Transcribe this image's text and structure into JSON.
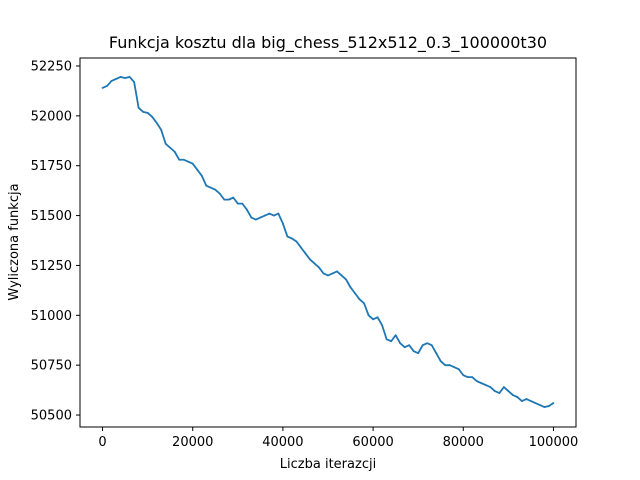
{
  "chart_data": {
    "type": "line",
    "title": "Funkcja kosztu dla big_chess_512x512_0.3_100000t30",
    "xlabel": "Liczba iterazcji",
    "ylabel": "Wyliczona funkcja",
    "xlim": [
      -5000,
      105000
    ],
    "ylim": [
      50440,
      52290
    ],
    "xticks": [
      0,
      20000,
      40000,
      60000,
      80000,
      100000
    ],
    "yticks": [
      50500,
      50750,
      51000,
      51250,
      51500,
      51750,
      52000,
      52250
    ],
    "grid": false,
    "series": [
      {
        "color": "#1f77b4",
        "x": [
          0,
          1000,
          2000,
          3000,
          4000,
          5000,
          6000,
          7000,
          8000,
          9000,
          10000,
          11000,
          12000,
          13000,
          14000,
          15000,
          16000,
          17000,
          18000,
          19000,
          20000,
          21000,
          22000,
          23000,
          24000,
          25000,
          26000,
          27000,
          28000,
          29000,
          30000,
          31000,
          32000,
          33000,
          34000,
          35000,
          36000,
          37000,
          38000,
          39000,
          40000,
          41000,
          42000,
          43000,
          44000,
          45000,
          46000,
          47000,
          48000,
          49000,
          50000,
          51000,
          52000,
          53000,
          54000,
          55000,
          56000,
          57000,
          58000,
          59000,
          60000,
          61000,
          62000,
          63000,
          64000,
          65000,
          66000,
          67000,
          68000,
          69000,
          70000,
          71000,
          72000,
          73000,
          74000,
          75000,
          76000,
          77000,
          78000,
          79000,
          80000,
          81000,
          82000,
          83000,
          84000,
          85000,
          86000,
          87000,
          88000,
          89000,
          90000,
          91000,
          92000,
          93000,
          94000,
          95000,
          96000,
          97000,
          98000,
          99000,
          100000
        ],
        "values": [
          52140,
          52150,
          52175,
          52185,
          52195,
          52190,
          52195,
          52170,
          52040,
          52020,
          52015,
          51995,
          51965,
          51930,
          51860,
          51840,
          51820,
          51780,
          51780,
          51770,
          51760,
          51730,
          51700,
          51650,
          51640,
          51630,
          51610,
          51580,
          51580,
          51590,
          51560,
          51560,
          51530,
          51490,
          51480,
          51490,
          51500,
          51510,
          51500,
          51510,
          51460,
          51395,
          51385,
          51370,
          51340,
          51310,
          51280,
          51260,
          51240,
          51210,
          51200,
          51210,
          51220,
          51200,
          51180,
          51140,
          51110,
          51080,
          51060,
          51000,
          50980,
          50990,
          50950,
          50880,
          50870,
          50900,
          50860,
          50840,
          50850,
          50820,
          50810,
          50850,
          50860,
          50850,
          50810,
          50770,
          50750,
          50750,
          50740,
          50730,
          50700,
          50690,
          50690,
          50670,
          50660,
          50650,
          50640,
          50620,
          50610,
          50640,
          50620,
          50600,
          50590,
          50570,
          50580,
          50570,
          50560,
          50550,
          50540,
          50545,
          50560
        ]
      }
    ]
  }
}
